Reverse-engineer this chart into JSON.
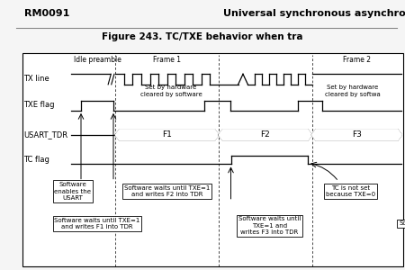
{
  "title_left": "RM0091",
  "title_right": "Universal synchronous asynchro",
  "fig_title": "Figure 243. TC/TXE behavior when tra",
  "signal_labels": [
    "TX line",
    "TXE flag",
    "USART_TDR",
    "TC flag"
  ],
  "frame_labels": [
    "Idle preamble",
    "Frame 1",
    "Frame 2"
  ],
  "tdr_labels": [
    "F1",
    "F2",
    "F3"
  ],
  "txe_ann1": "Set by hardware\ncleared by software",
  "txe_ann2": "Set by hardware\ncleared by softwa",
  "box1": "Software\nenables the\nUSART",
  "box2": "Software waits until TXE=1\nand writes F2 into TDR",
  "box3": "TC is not set\nbecause TXE=0",
  "box4": "Software waits until TXE=1\nand writes F1 into TDR",
  "box5": "Software waits until\nTXE=1 and\nwrites F3 into TDR",
  "box6": "Sof",
  "header_bg": "#f5f5f5",
  "diagram_bg": "#f5f5f5"
}
